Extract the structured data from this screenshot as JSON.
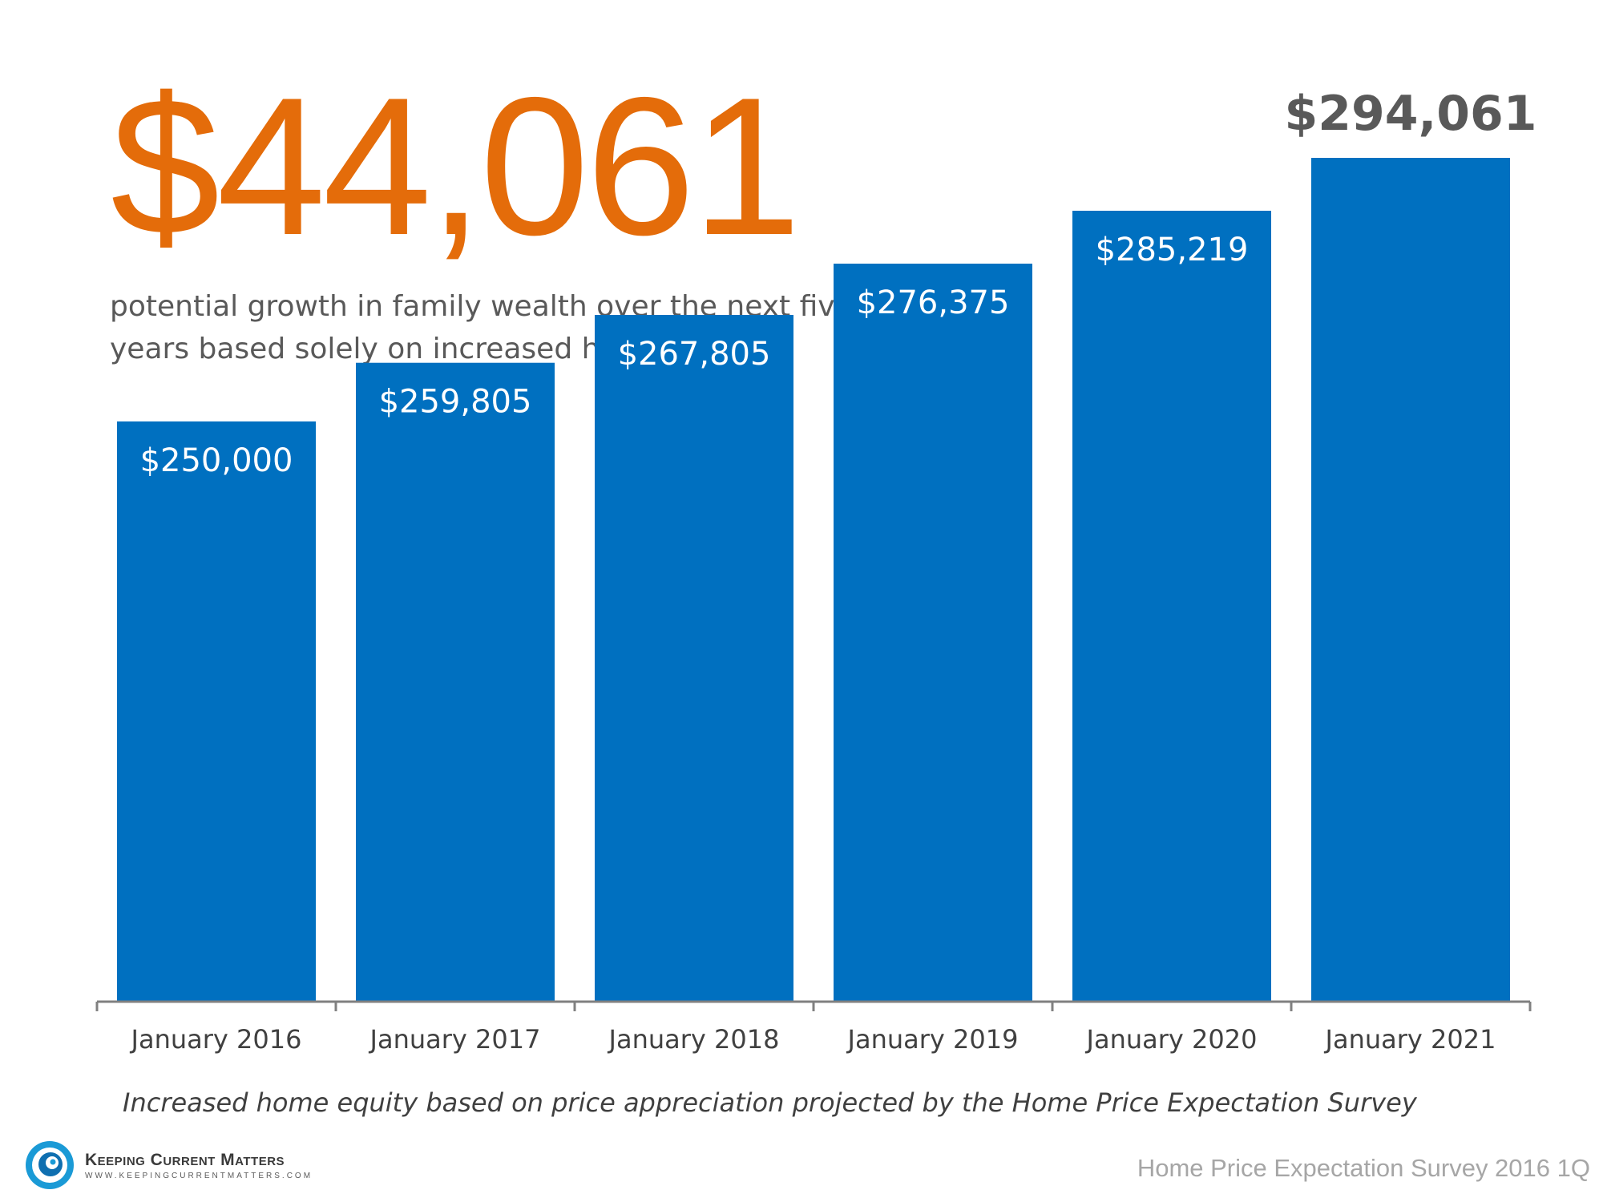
{
  "headline": "$44,061",
  "subtitle_lines": [
    "potential growth in family wealth over the next five",
    "years based solely on increased home equity"
  ],
  "caption": "Increased home equity based on price appreciation projected by the Home Price Expectation Survey",
  "source": "Home Price Expectation Survey 2016 1Q",
  "logo": {
    "name": "Keeping Current Matters",
    "url": "WWW.KEEPINGCURRENTMATTERS.COM"
  },
  "colors": {
    "bar": "#0070c0",
    "headline": "#e46c0a",
    "text": "#595959"
  },
  "chart_data": {
    "type": "bar",
    "categories": [
      "January 2016",
      "January 2017",
      "January 2018",
      "January 2019",
      "January 2020",
      "January 2021"
    ],
    "values": [
      250000,
      259805,
      267805,
      276375,
      285219,
      294061
    ],
    "value_labels": [
      "$250,000",
      "$259,805",
      "$267,805",
      "$276,375",
      "$285,219",
      "$294,061"
    ],
    "title": "",
    "xlabel": "",
    "ylabel": "",
    "grid": false,
    "ylim": [
      153000,
      294061
    ]
  }
}
